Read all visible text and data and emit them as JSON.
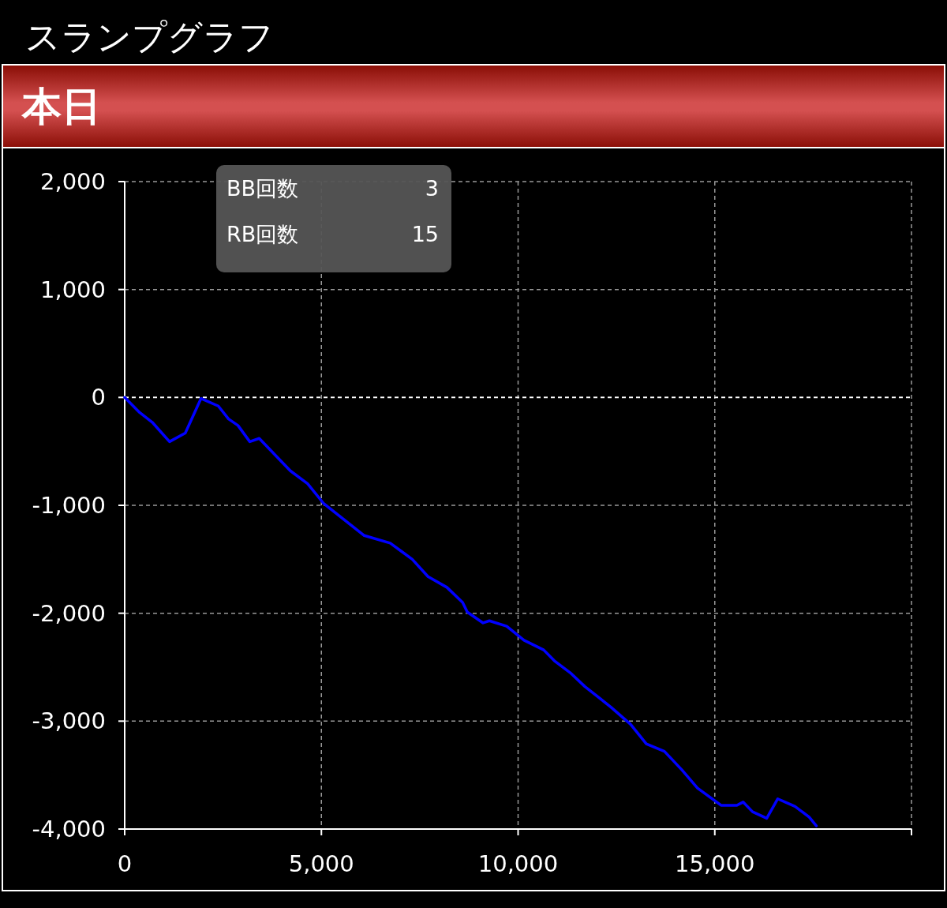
{
  "chart_data": {
    "type": "line",
    "title": "スランプグラフ",
    "subtitle": "本日",
    "annotations": [
      "BB回数",
      "3",
      "RB回数",
      "15"
    ],
    "x": [
      0,
      380,
      700,
      1140,
      1540,
      1940,
      2380,
      2640,
      2880,
      3180,
      3420,
      4210,
      4650,
      5050,
      6090,
      6750,
      7310,
      7710,
      8190,
      8590,
      8710,
      9110,
      9270,
      9710,
      10150,
      10650,
      10920,
      11320,
      11700,
      12360,
      12860,
      13260,
      13720,
      14160,
      14560,
      15160,
      15560,
      15720,
      15960,
      16320,
      16600,
      17040,
      17400,
      17580
    ],
    "series": [
      {
        "color": "#0000ff",
        "values": [
          0,
          -140,
          -230,
          -410,
          -330,
          -10,
          -80,
          -200,
          -260,
          -410,
          -380,
          -680,
          -800,
          -980,
          -1280,
          -1350,
          -1500,
          -1660,
          -1760,
          -1900,
          -1990,
          -2090,
          -2070,
          -2120,
          -2250,
          -2340,
          -2440,
          -2550,
          -2680,
          -2870,
          -3030,
          -3210,
          -3280,
          -3450,
          -3620,
          -3780,
          -3780,
          -3750,
          -3840,
          -3900,
          -3720,
          -3790,
          -3890,
          -3970
        ]
      }
    ],
    "xlim": [
      0,
      20000
    ],
    "ylim": [
      -4000,
      2000
    ],
    "xticks": [
      0,
      {
        "value": 5000,
        "label": "5,000"
      },
      {
        "value": 10000,
        "label": "10,000"
      },
      {
        "value": 15000,
        "label": "15,000"
      },
      {
        "value": 20000,
        "label": null
      }
    ],
    "yticks": [
      {
        "value": -4000,
        "label": "-4,000"
      },
      {
        "value": -3000,
        "label": "-3,000"
      },
      {
        "value": -2000,
        "label": "-2,000"
      },
      {
        "value": -1000,
        "label": "-1,000"
      },
      0,
      {
        "value": 1000,
        "label": "1,000"
      },
      {
        "value": 2000,
        "label": "2,000"
      }
    ],
    "ref_lines": [
      {
        "axis": "y",
        "value": 0,
        "color": "#ffffff",
        "line_style": "dashed"
      }
    ],
    "grid": true,
    "line_style": "solid"
  }
}
